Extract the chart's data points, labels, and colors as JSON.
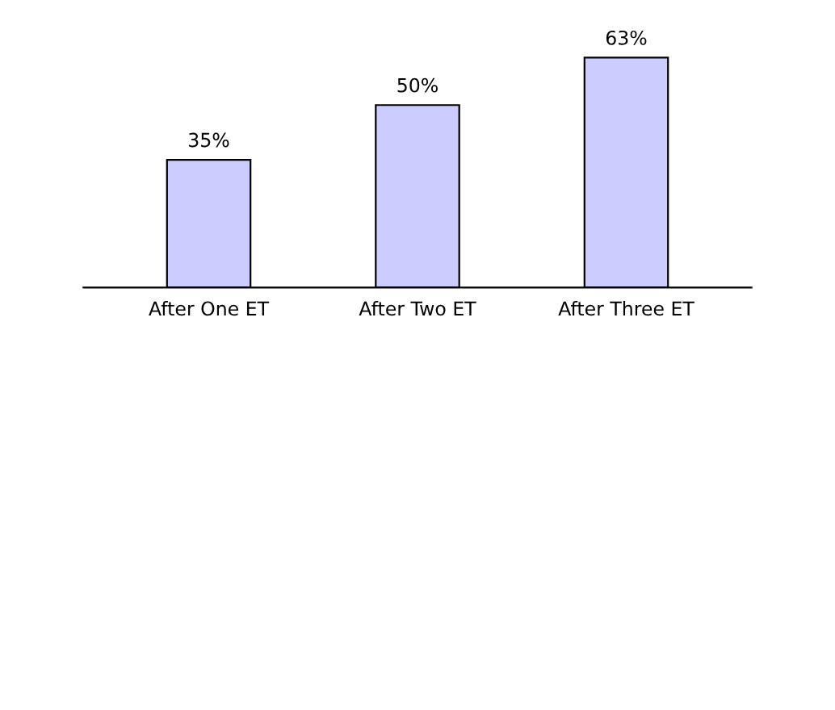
{
  "chart_data": {
    "type": "bar",
    "categories": [
      "After One ET",
      "After Two ET",
      "After Three ET"
    ],
    "values": [
      35,
      50,
      63
    ],
    "value_labels": [
      "35%",
      "50%",
      "63%"
    ],
    "color": "#ccccff"
  }
}
